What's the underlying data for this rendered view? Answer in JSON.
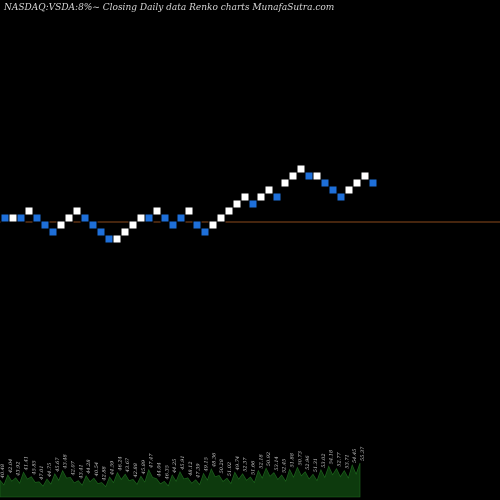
{
  "header": {
    "title": "NASDAQ:VSDA:8%~  Closing Daily data  Renko  charts MunafaSutra.com"
  },
  "colors": {
    "background": "#000000",
    "up_brick": "#ffffff",
    "down_brick": "#1e6fd9",
    "brick_border": "#000000",
    "reference_line": "#8b4a1c",
    "volume_fill": "#0d3a0d",
    "volume_stroke": "#1f6b1f"
  },
  "chart_data": {
    "type": "renko",
    "title": "NASDAQ:VSDA:8%~  Closing Daily data  Renko  charts MunafaSutra.com",
    "grid": false,
    "bricks": [
      {
        "dir": "down",
        "level": 0
      },
      {
        "dir": "up",
        "level": 0
      },
      {
        "dir": "down",
        "level": 0
      },
      {
        "dir": "up",
        "level": 1
      },
      {
        "dir": "down",
        "level": 0
      },
      {
        "dir": "down",
        "level": -1
      },
      {
        "dir": "down",
        "level": -2
      },
      {
        "dir": "up",
        "level": -1
      },
      {
        "dir": "up",
        "level": 0
      },
      {
        "dir": "up",
        "level": 1
      },
      {
        "dir": "down",
        "level": 0
      },
      {
        "dir": "down",
        "level": -1
      },
      {
        "dir": "down",
        "level": -2
      },
      {
        "dir": "down",
        "level": -3
      },
      {
        "dir": "up",
        "level": -3
      },
      {
        "dir": "up",
        "level": -2
      },
      {
        "dir": "up",
        "level": -1
      },
      {
        "dir": "up",
        "level": 0
      },
      {
        "dir": "down",
        "level": 0
      },
      {
        "dir": "up",
        "level": 1
      },
      {
        "dir": "down",
        "level": 0
      },
      {
        "dir": "down",
        "level": -1
      },
      {
        "dir": "down",
        "level": 0
      },
      {
        "dir": "up",
        "level": 1
      },
      {
        "dir": "down",
        "level": -1
      },
      {
        "dir": "down",
        "level": -2
      },
      {
        "dir": "up",
        "level": -1
      },
      {
        "dir": "up",
        "level": 0
      },
      {
        "dir": "up",
        "level": 1
      },
      {
        "dir": "up",
        "level": 2
      },
      {
        "dir": "up",
        "level": 3
      },
      {
        "dir": "down",
        "level": 2
      },
      {
        "dir": "up",
        "level": 3
      },
      {
        "dir": "up",
        "level": 4
      },
      {
        "dir": "down",
        "level": 3
      },
      {
        "dir": "up",
        "level": 5
      },
      {
        "dir": "up",
        "level": 6
      },
      {
        "dir": "up",
        "level": 7
      },
      {
        "dir": "down",
        "level": 6
      },
      {
        "dir": "up",
        "level": 6
      },
      {
        "dir": "down",
        "level": 5
      },
      {
        "dir": "down",
        "level": 4
      },
      {
        "dir": "down",
        "level": 3
      },
      {
        "dir": "up",
        "level": 4
      },
      {
        "dir": "up",
        "level": 5
      },
      {
        "dir": "up",
        "level": 6
      },
      {
        "dir": "down",
        "level": 5
      }
    ],
    "reference_line": true,
    "volume": [
      0.42,
      0.55,
      0.48,
      0.62,
      0.51,
      0.38,
      0.45,
      0.58,
      0.66,
      0.49,
      0.41,
      0.53,
      0.47,
      0.36,
      0.5,
      0.61,
      0.57,
      0.44,
      0.52,
      0.68,
      0.46,
      0.39,
      0.55,
      0.63,
      0.48,
      0.43,
      0.59,
      0.7,
      0.54,
      0.47,
      0.62,
      0.58,
      0.5,
      0.66,
      0.72,
      0.61,
      0.55,
      0.69,
      0.74,
      0.63,
      0.57,
      0.68,
      0.77,
      0.71,
      0.66,
      0.8,
      0.85
    ],
    "volume_labels": [
      "40.48",
      "42.04",
      "43.92",
      "41.41",
      "45.85",
      "47.01",
      "44.75",
      "45.67",
      "43.48",
      "42.07",
      "43.41",
      "44.28",
      "40.54",
      "42.88",
      "44.59",
      "46.24",
      "43.67",
      "42.88",
      "45.89",
      "47.47",
      "44.04",
      "46.35",
      "44.25",
      "45.91",
      "48.12",
      "47.39",
      "49.15",
      "48.36",
      "50.28",
      "51.02",
      "49.74",
      "52.37",
      "51.66",
      "52.18",
      "50.92",
      "53.14",
      "52.45",
      "51.88",
      "50.73",
      "52.96",
      "51.31",
      "53.02",
      "54.18",
      "52.77",
      "53.71",
      "54.45",
      "55.37"
    ]
  }
}
